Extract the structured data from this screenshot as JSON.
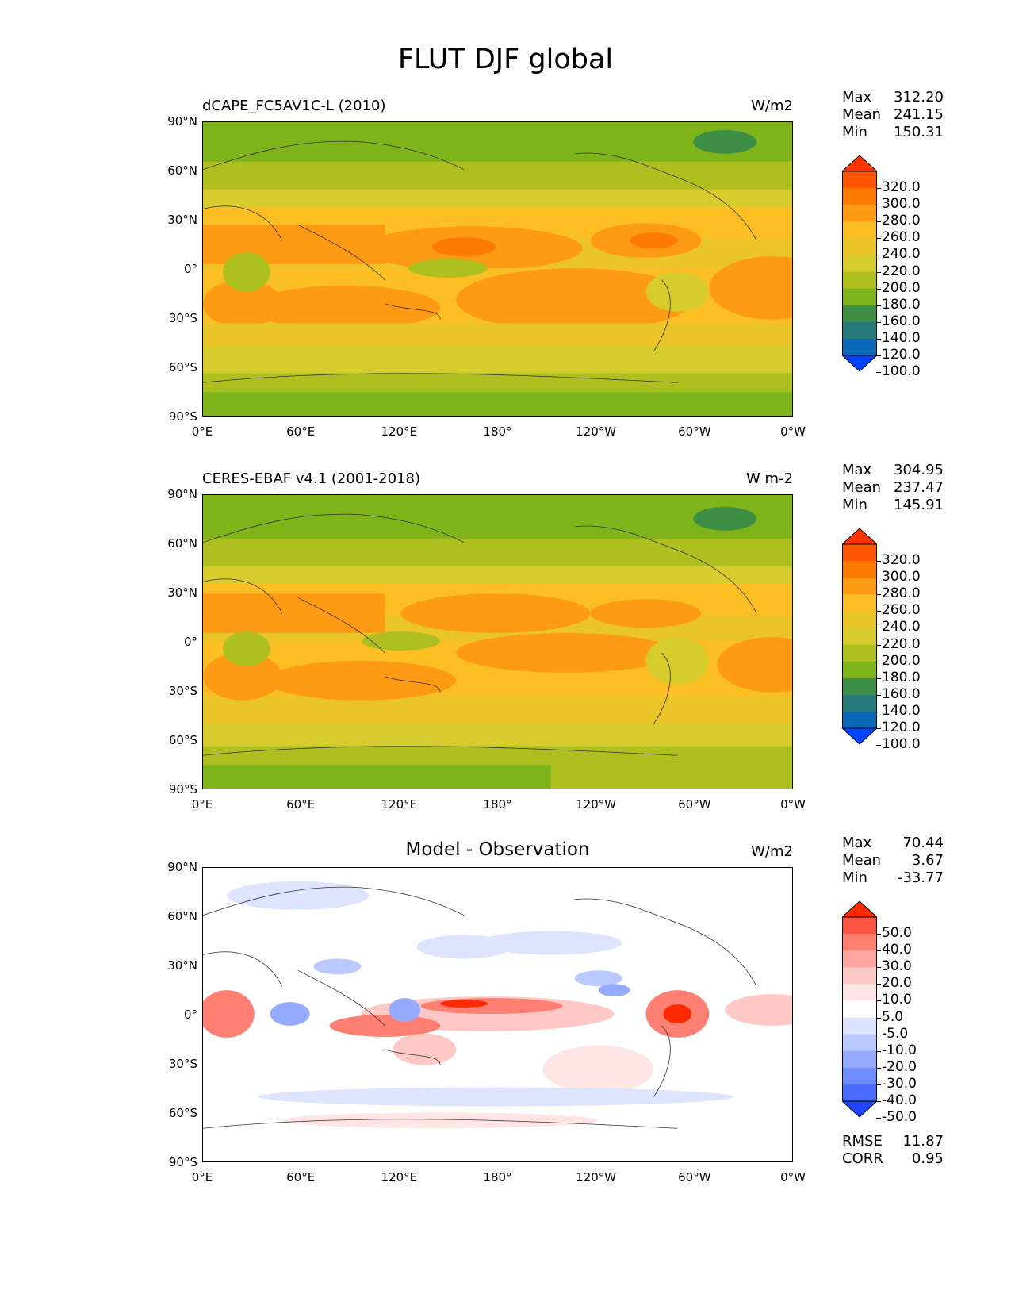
{
  "figure_title": "FLUT DJF global",
  "lat_ticks": [
    "90°N",
    "60°N",
    "30°N",
    "0°",
    "30°S",
    "60°S",
    "90°S"
  ],
  "lon_ticks": [
    "0°E",
    "60°E",
    "120°E",
    "180°",
    "120°W",
    "60°W",
    "0°W"
  ],
  "panels": [
    {
      "title_left": "dCAPE_FC5AV1C-L (2010)",
      "title_center": "",
      "units": "W/m2",
      "stats": [
        [
          "Max",
          "312.20"
        ],
        [
          "Mean",
          "241.15"
        ],
        [
          "Min",
          "150.31"
        ]
      ],
      "colorbar_labels": [
        "320.0",
        "300.0",
        "280.0",
        "260.0",
        "240.0",
        "220.0",
        "200.0",
        "180.0",
        "160.0",
        "140.0",
        "120.0",
        "100.0"
      ],
      "colorbar_colors": [
        "#ff3300",
        "#ff5500",
        "#ff7a00",
        "#ff9a14",
        "#fbbf24",
        "#e9c52a",
        "#d6cc2e",
        "#aec020",
        "#7fb31a",
        "#3e8e45",
        "#277a7a",
        "#0b67b8",
        "#0044ff"
      ]
    },
    {
      "title_left": "CERES-EBAF v4.1 (2001-2018)",
      "title_center": "",
      "units": "W m-2",
      "stats": [
        [
          "Max",
          "304.95"
        ],
        [
          "Mean",
          "237.47"
        ],
        [
          "Min",
          "145.91"
        ]
      ],
      "colorbar_labels": [
        "320.0",
        "300.0",
        "280.0",
        "260.0",
        "240.0",
        "220.0",
        "200.0",
        "180.0",
        "160.0",
        "140.0",
        "120.0",
        "100.0"
      ],
      "colorbar_colors": [
        "#ff3300",
        "#ff5500",
        "#ff7a00",
        "#ff9a14",
        "#fbbf24",
        "#e9c52a",
        "#d6cc2e",
        "#aec020",
        "#7fb31a",
        "#3e8e45",
        "#277a7a",
        "#0b67b8",
        "#0044ff"
      ]
    },
    {
      "title_left": "",
      "title_center": "Model - Observation",
      "units": "W/m2",
      "stats": [
        [
          "Max",
          "70.44"
        ],
        [
          "Mean",
          "3.67"
        ],
        [
          "Min",
          "-33.77"
        ]
      ],
      "colorbar_labels": [
        "50.0",
        "40.0",
        "30.0",
        "20.0",
        "10.0",
        "5.0",
        "-5.0",
        "-10.0",
        "-20.0",
        "-30.0",
        "-40.0",
        "-50.0"
      ],
      "colorbar_colors": [
        "#ff2a00",
        "#ff5540",
        "#ff7f72",
        "#ffa6a0",
        "#ffc8c5",
        "#ffe6e4",
        "#ffffff",
        "#dde4ff",
        "#b9c8ff",
        "#95abff",
        "#6f8cff",
        "#4a6cff",
        "#1f45ff"
      ],
      "metrics": [
        [
          "RMSE",
          "11.87"
        ],
        [
          "CORR",
          "0.95"
        ]
      ]
    }
  ]
}
